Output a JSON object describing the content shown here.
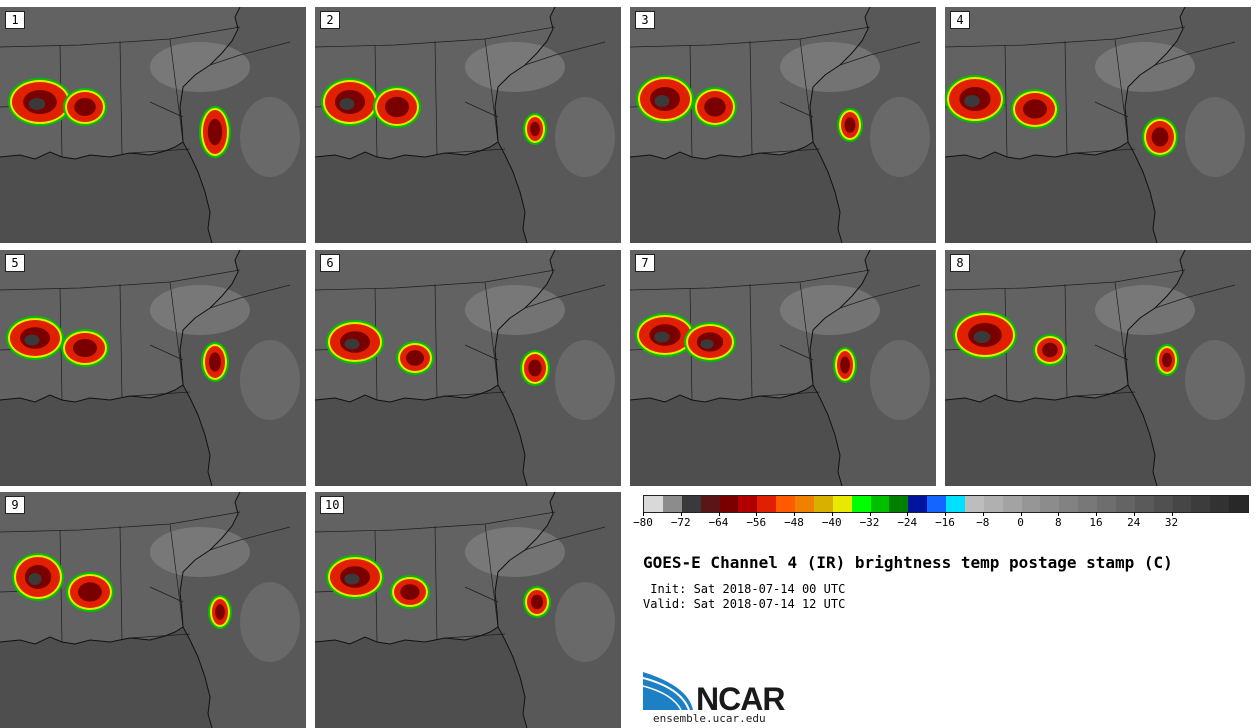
{
  "panels": [
    {
      "number": "1"
    },
    {
      "number": "2"
    },
    {
      "number": "3"
    },
    {
      "number": "4"
    },
    {
      "number": "5"
    },
    {
      "number": "6"
    },
    {
      "number": "7"
    },
    {
      "number": "8"
    },
    {
      "number": "9"
    },
    {
      "number": "10"
    }
  ],
  "colorbar": {
    "colors": [
      "#d9d9d9",
      "#8c8c8c",
      "#3a3a3a",
      "#5a1616",
      "#7a0000",
      "#b00000",
      "#e02000",
      "#ff5a00",
      "#f08000",
      "#d8b000",
      "#e8e800",
      "#00ff00",
      "#00c000",
      "#008000",
      "#0014a0",
      "#1464ff",
      "#00e0ff",
      "#bdbdbd",
      "#b0b0b0",
      "#a3a3a3",
      "#969696",
      "#8c8c8c",
      "#828282",
      "#787878",
      "#6e6e6e",
      "#646464",
      "#5a5a5a",
      "#505050",
      "#464646",
      "#3c3c3c",
      "#323232",
      "#282828"
    ],
    "tick_labels": [
      "−80",
      "−72",
      "−64",
      "−56",
      "−48",
      "−40",
      "−32",
      "−24",
      "−16",
      "−8",
      "0",
      "8",
      "16",
      "24",
      "32"
    ]
  },
  "title": "GOES-E Channel 4 (IR) brightness temp postage stamp (C)",
  "init": " Init: Sat 2018-07-14 00 UTC",
  "valid": "Valid: Sat 2018-07-14 12 UTC",
  "logo_text": "NCAR",
  "website": "ensemble.ucar.edu"
}
